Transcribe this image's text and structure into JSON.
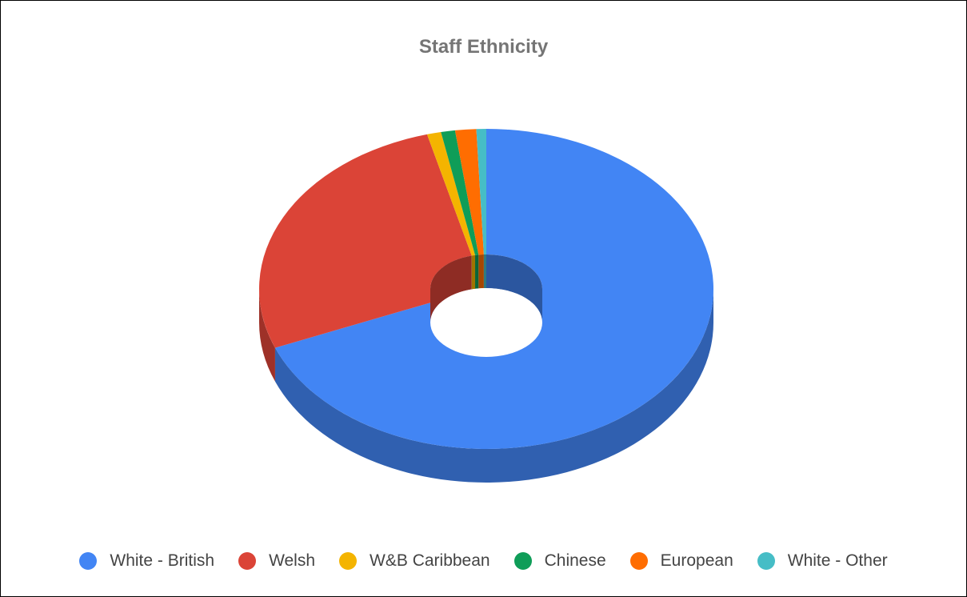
{
  "chart_data": {
    "type": "pie",
    "title": "Staff Ethnicity",
    "style": "3d-donut",
    "legend_position": "bottom",
    "categories": [
      "White - British",
      "Welsh",
      "W&B Caribbean",
      "Chinese",
      "European",
      "White - Other"
    ],
    "values": [
      69.0,
      26.8,
      1.0,
      1.0,
      1.5,
      0.7
    ],
    "colors": [
      "#4285f4",
      "#db4437",
      "#f4b400",
      "#0f9d58",
      "#ff6d01",
      "#46bdc6"
    ]
  }
}
